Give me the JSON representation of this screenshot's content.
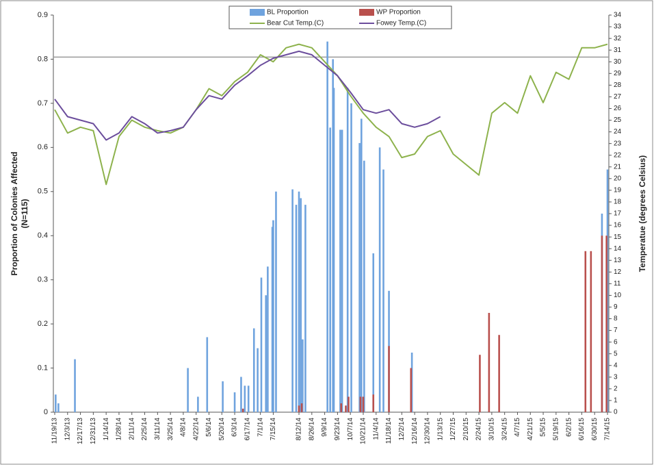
{
  "chart_data": {
    "type": "combo",
    "ylabel": [
      "Proportion of Colonies Affected",
      "(N=115)"
    ],
    "y2label": "Temperatue (degrees Celsius)",
    "xticks": [
      "11/19/13",
      "12/3/13",
      "12/17/13",
      "12/31/13",
      "1/14/14",
      "1/28/14",
      "2/11/14",
      "2/25/14",
      "3/11/14",
      "3/25/14",
      "4/8/14",
      "4/22/14",
      "5/6/14",
      "5/20/14",
      "6/3/14",
      "6/17/14",
      "7/1/14",
      "7/15/14",
      "8/12/14",
      "8/26/14",
      "9/9/14",
      "9/23/14",
      "10/7/14",
      "10/21/14",
      "11/4/14",
      "11/18/14",
      "12/2/14",
      "12/16/14",
      "12/30/14",
      "1/13/15",
      "1/27/15",
      "2/10/15",
      "2/24/15",
      "3/10/15",
      "3/24/15",
      "4/7/15",
      "4/21/15",
      "5/5/15",
      "5/19/15",
      "6/2/15",
      "6/16/15",
      "6/30/15",
      "7/14/15"
    ],
    "ylim": [
      0,
      0.9
    ],
    "yticks": [
      0,
      0.1,
      0.2,
      0.3,
      0.4,
      0.5,
      0.6,
      0.7,
      0.8,
      0.9
    ],
    "y2lim": [
      0,
      34
    ],
    "y2ticks": [
      0,
      1,
      2,
      3,
      4,
      5,
      6,
      7,
      8,
      9,
      10,
      11,
      12,
      13,
      14,
      15,
      16,
      17,
      18,
      19,
      20,
      21,
      22,
      23,
      24,
      25,
      26,
      27,
      28,
      29,
      30,
      31,
      32,
      33,
      34
    ],
    "reference_line": {
      "value": 30.4,
      "axis": "y2",
      "color": "#9a9a9a"
    },
    "series": [
      {
        "name": "BL Proportion",
        "type": "bar",
        "color": "#6fa3de",
        "x": [
          "11/20/13",
          "11/23/13",
          "12/11/13",
          "4/13/14",
          "4/24/14",
          "5/4/14",
          "5/21/14",
          "6/3/14",
          "6/10/14",
          "6/14/14",
          "6/18/14",
          "6/24/14",
          "6/28/14",
          "7/2/14",
          "7/7/14",
          "7/9/14",
          "7/14/14",
          "7/15/14",
          "7/18/14",
          "8/5/14",
          "8/9/14",
          "8/12/14",
          "8/14/14",
          "8/16/14",
          "8/19/14",
          "9/12/14",
          "9/15/14",
          "9/18/14",
          "9/19/14",
          "9/26/14",
          "9/28/14",
          "10/4/14",
          "10/8/14",
          "10/17/14",
          "10/19/14",
          "10/22/14",
          "11/1/14",
          "11/8/14",
          "11/12/14",
          "11/18/14",
          "12/13/14",
          "7/8/15",
          "7/14/15"
        ],
        "values": [
          0.04,
          0.02,
          0.12,
          0.1,
          0.035,
          0.17,
          0.07,
          0.045,
          0.08,
          0.06,
          0.06,
          0.19,
          0.145,
          0.305,
          0.265,
          0.33,
          0.42,
          0.435,
          0.5,
          0.505,
          0.47,
          0.5,
          0.485,
          0.165,
          0.47,
          0.84,
          0.645,
          0.8,
          0.735,
          0.64,
          0.64,
          0.735,
          0.7,
          0.61,
          0.665,
          0.57,
          0.36,
          0.6,
          0.55,
          0.275,
          0.135,
          0.45,
          0.55
        ]
      },
      {
        "name": "WP Proportion",
        "type": "bar",
        "color": "#b9504d",
        "x": [
          "6/12/14",
          "8/12/14",
          "8/15/14",
          "9/27/14",
          "10/2/14",
          "10/5/14",
          "10/18/14",
          "10/21/14",
          "11/1/14",
          "11/18/14",
          "12/12/14",
          "2/25/15",
          "3/7/15",
          "3/18/15",
          "6/20/15",
          "6/26/15",
          "7/8/15",
          "7/13/15"
        ],
        "values": [
          0.008,
          0.015,
          0.02,
          0.02,
          0.015,
          0.035,
          0.035,
          0.035,
          0.04,
          0.15,
          0.1,
          0.13,
          0.225,
          0.175,
          0.365,
          0.365,
          0.4,
          0.4
        ]
      },
      {
        "name": "Bear Cut Temp.(C)",
        "type": "line",
        "axis": "y2",
        "color": "#8db24c",
        "x": [
          "11/19/13",
          "12/3/13",
          "12/17/13",
          "12/31/13",
          "1/14/14",
          "1/28/14",
          "2/11/14",
          "2/25/14",
          "3/11/14",
          "3/25/14",
          "4/8/14",
          "4/22/14",
          "5/6/14",
          "5/20/14",
          "6/3/14",
          "6/17/14",
          "7/1/14",
          "7/15/14",
          "7/29/14",
          "8/12/14",
          "8/26/14",
          "9/9/14",
          "9/23/14",
          "10/7/14",
          "10/21/14",
          "11/4/14",
          "11/18/14",
          "12/2/14",
          "12/16/14",
          "12/30/14",
          "1/13/15",
          "1/27/15",
          "2/10/15",
          "2/24/15",
          "3/10/15",
          "3/24/15",
          "4/7/15",
          "4/21/15",
          "5/5/15",
          "5/19/15",
          "6/2/15",
          "6/16/15",
          "6/30/15",
          "7/14/15"
        ],
        "values": [
          25.9,
          23.9,
          24.4,
          24.1,
          19.5,
          23.6,
          25,
          24.4,
          24.1,
          23.9,
          24.4,
          25.9,
          27.7,
          27.1,
          28.3,
          29.1,
          30.6,
          30,
          31.2,
          31.5,
          31.2,
          30,
          28.8,
          27.1,
          25.6,
          24.4,
          23.6,
          21.8,
          22.1,
          23.6,
          24.1,
          22.1,
          21.2,
          20.3,
          25.6,
          26.5,
          25.6,
          28.8,
          26.5,
          29.1,
          28.5,
          31.2,
          31.2,
          31.5
        ]
      },
      {
        "name": "Fowey Temp.(C)",
        "type": "line",
        "axis": "y2",
        "color": "#6b4d9c",
        "x": [
          "11/19/13",
          "12/3/13",
          "12/17/13",
          "12/31/13",
          "1/14/14",
          "1/28/14",
          "2/11/14",
          "2/25/14",
          "3/11/14",
          "3/25/14",
          "4/8/14",
          "4/22/14",
          "5/6/14",
          "5/20/14",
          "6/3/14",
          "6/17/14",
          "7/1/14",
          "7/15/14",
          "7/29/14",
          "8/12/14",
          "8/26/14",
          "9/9/14",
          "9/23/14",
          "10/7/14",
          "10/21/14",
          "11/4/14",
          "11/18/14",
          "12/2/14",
          "12/16/14",
          "12/30/14",
          "1/13/15"
        ],
        "values": [
          26.8,
          25.3,
          25,
          24.7,
          23.3,
          23.9,
          25.3,
          24.7,
          23.9,
          24.1,
          24.4,
          25.9,
          27.1,
          26.8,
          28,
          28.8,
          29.7,
          30.3,
          30.6,
          30.9,
          30.6,
          29.7,
          28.8,
          27.4,
          25.9,
          25.6,
          25.9,
          24.7,
          24.4,
          24.7,
          25.3
        ]
      }
    ]
  }
}
